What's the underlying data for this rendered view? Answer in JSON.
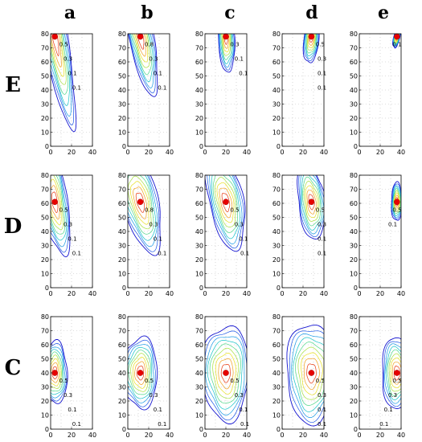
{
  "figure": {
    "column_labels": [
      "a",
      "b",
      "c",
      "d",
      "e"
    ],
    "row_labels": [
      "E",
      "D",
      "C"
    ]
  },
  "chart_data": {
    "type": "contour",
    "panel_columns": [
      "a",
      "b",
      "c",
      "d",
      "e"
    ],
    "panel_rows": [
      "E",
      "D",
      "C"
    ],
    "xlim": [
      0,
      40
    ],
    "ylim": [
      0,
      80
    ],
    "xticks": [
      0,
      20,
      40
    ],
    "yticks": [
      0,
      10,
      20,
      30,
      40,
      50,
      60,
      70,
      80
    ],
    "grid": true,
    "contour_labels": [
      "0.1",
      "0.3",
      "0.5",
      "0.8"
    ],
    "contour_levels": [
      0.1,
      0.2,
      0.3,
      0.4,
      0.5,
      0.6,
      0.7,
      0.8,
      0.9
    ],
    "level_colors": [
      "#1515d0",
      "#1a55e8",
      "#1a9ae6",
      "#16c4c8",
      "#4fd88a",
      "#a8e040",
      "#e8e020",
      "#f0a020",
      "#e83a10"
    ],
    "source_marker_color": "#e60000",
    "panels": [
      {
        "row": "E",
        "col": "a",
        "source": [
          4,
          78
        ],
        "spread": [
          7,
          40
        ],
        "lean": 0.25,
        "extent": 0.75,
        "labels": [
          "0.5",
          "0.3",
          "0.1",
          "0.1"
        ]
      },
      {
        "row": "E",
        "col": "b",
        "source": [
          12,
          78
        ],
        "spread": [
          8,
          30
        ],
        "lean": 0.3,
        "extent": 0.65,
        "labels": [
          "0.8",
          "0.3",
          "0.1",
          "0.1"
        ]
      },
      {
        "row": "E",
        "col": "c",
        "source": [
          20,
          78
        ],
        "spread": [
          6,
          22
        ],
        "lean": 0.1,
        "extent": 0.55,
        "labels": [
          "0.3",
          "0.1",
          "0.1"
        ]
      },
      {
        "row": "E",
        "col": "d",
        "source": [
          28,
          78
        ],
        "spread": [
          6,
          18
        ],
        "lean": -0.1,
        "extent": 0.5,
        "labels": [
          "0.5",
          "0.3",
          "0.1",
          "0.1"
        ]
      },
      {
        "row": "E",
        "col": "e",
        "source": [
          36,
          78
        ],
        "spread": [
          4,
          12
        ],
        "lean": -0.3,
        "extent": 0.3,
        "labels": [
          "0.1"
        ]
      },
      {
        "row": "D",
        "col": "a",
        "source": [
          4,
          61
        ],
        "spread": [
          7,
          22
        ],
        "lean": 0.2,
        "extent": 0.8,
        "labels": [
          "0.5",
          "0.3",
          "0.1",
          "0.1"
        ]
      },
      {
        "row": "D",
        "col": "b",
        "source": [
          12,
          61
        ],
        "spread": [
          9,
          20
        ],
        "lean": 0.3,
        "extent": 0.85,
        "labels": [
          "0.8",
          "0.3",
          "0.1",
          "0.1"
        ]
      },
      {
        "row": "D",
        "col": "c",
        "source": [
          20,
          61
        ],
        "spread": [
          9,
          20
        ],
        "lean": 0.25,
        "extent": 0.8,
        "labels": [
          "0.5",
          "0.3",
          "0.1",
          "0.1"
        ]
      },
      {
        "row": "D",
        "col": "d",
        "source": [
          28,
          61
        ],
        "spread": [
          8,
          18
        ],
        "lean": 0.15,
        "extent": 0.7,
        "labels": [
          "0.5",
          "0.3",
          "0.1",
          "0.1"
        ]
      },
      {
        "row": "D",
        "col": "e",
        "source": [
          36,
          61
        ],
        "spread": [
          5,
          14
        ],
        "lean": 0.0,
        "extent": 0.45,
        "labels": [
          "0.5",
          "0.1"
        ]
      },
      {
        "row": "C",
        "col": "a",
        "source": [
          4,
          40
        ],
        "spread": [
          7,
          14
        ],
        "lean": 0.0,
        "extent": 0.75,
        "labels": [
          "0.5",
          "0.3",
          "0.1",
          "0.1"
        ]
      },
      {
        "row": "C",
        "col": "b",
        "source": [
          12,
          40
        ],
        "spread": [
          9,
          15
        ],
        "lean": 0.0,
        "extent": 0.8,
        "labels": [
          "0.5",
          "0.3",
          "0.1",
          "0.1"
        ]
      },
      {
        "row": "C",
        "col": "c",
        "source": [
          20,
          40
        ],
        "spread": [
          11,
          18
        ],
        "lean": 0.0,
        "extent": 0.9,
        "labels": [
          "0.5",
          "0.3",
          "0.1",
          "0.1"
        ]
      },
      {
        "row": "C",
        "col": "d",
        "source": [
          28,
          40
        ],
        "spread": [
          11,
          18
        ],
        "lean": 0.0,
        "extent": 0.95,
        "labels": [
          "0.5",
          "0.3",
          "0.1",
          "0.1"
        ]
      },
      {
        "row": "C",
        "col": "e",
        "source": [
          36,
          40
        ],
        "spread": [
          8,
          15
        ],
        "lean": 0.0,
        "extent": 0.8,
        "labels": [
          "0.5",
          "0.3",
          "0.1",
          "0.1"
        ]
      }
    ]
  }
}
